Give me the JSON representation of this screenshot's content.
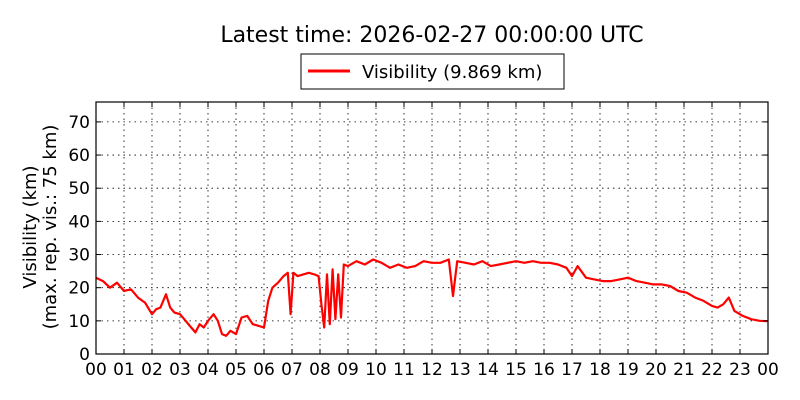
{
  "chart_data": {
    "type": "line",
    "title": "Latest time: 2026-02-27 00:00:00 UTC",
    "ylabel_line1": "Visibility (km)",
    "ylabel_line2": "(max. rep. vis.: 75 km)",
    "ylim": [
      0,
      76
    ],
    "xlim": [
      0,
      24
    ],
    "yticks": [
      0,
      10,
      20,
      30,
      40,
      50,
      60,
      70
    ],
    "ytick_labels": [
      "0",
      "10",
      "20",
      "30",
      "40",
      "50",
      "60",
      "70"
    ],
    "xtick_labels": [
      "00",
      "01",
      "02",
      "03",
      "04",
      "05",
      "06",
      "07",
      "08",
      "09",
      "10",
      "11",
      "12",
      "13",
      "14",
      "15",
      "16",
      "17",
      "18",
      "19",
      "20",
      "21",
      "22",
      "23",
      "00"
    ],
    "grid": true,
    "legend_position": "top-center",
    "series": [
      {
        "name": "Visibility (9.869 km)",
        "color": "#ff0000",
        "x": [
          0,
          0.25,
          0.5,
          0.75,
          1.0,
          1.25,
          1.5,
          1.75,
          2.0,
          2.15,
          2.3,
          2.5,
          2.65,
          2.8,
          3.0,
          3.2,
          3.4,
          3.55,
          3.7,
          3.85,
          4.0,
          4.2,
          4.35,
          4.5,
          4.65,
          4.8,
          5.0,
          5.2,
          5.4,
          5.6,
          5.8,
          6.0,
          6.15,
          6.3,
          6.5,
          6.7,
          6.85,
          6.95,
          7.05,
          7.2,
          7.4,
          7.6,
          7.8,
          7.95,
          8.05,
          8.15,
          8.25,
          8.35,
          8.45,
          8.55,
          8.65,
          8.75,
          8.85,
          9.0,
          9.3,
          9.6,
          9.9,
          10.2,
          10.5,
          10.8,
          11.1,
          11.4,
          11.7,
          12.0,
          12.3,
          12.6,
          12.75,
          12.9,
          13.2,
          13.5,
          13.8,
          14.1,
          14.4,
          14.7,
          15.0,
          15.3,
          15.6,
          15.9,
          16.2,
          16.5,
          16.8,
          17.0,
          17.2,
          17.5,
          17.8,
          18.1,
          18.4,
          18.7,
          19.0,
          19.3,
          19.6,
          19.9,
          20.2,
          20.5,
          20.8,
          21.1,
          21.4,
          21.7,
          22.0,
          22.2,
          22.4,
          22.6,
          22.8,
          23.1,
          23.4,
          23.7,
          24.0
        ],
        "values": [
          23,
          22,
          20,
          21.5,
          19,
          19.5,
          17,
          15.5,
          12,
          13.5,
          14,
          18,
          14,
          12.5,
          12,
          10,
          8,
          6.5,
          9,
          8,
          10,
          12,
          10,
          6,
          5.5,
          7,
          6,
          11,
          11.5,
          9,
          8.5,
          8,
          16,
          20,
          21.5,
          23.5,
          24.5,
          12,
          24.5,
          23.5,
          24,
          24.5,
          24,
          23.5,
          15,
          8,
          24,
          9,
          25.5,
          10.5,
          24,
          11,
          27,
          26.5,
          28,
          27,
          28.5,
          27.5,
          26,
          27,
          26,
          26.5,
          28,
          27.5,
          27.5,
          28.5,
          17.5,
          28,
          27.5,
          27,
          28,
          26.5,
          27,
          27.5,
          28,
          27.5,
          28,
          27.5,
          27.5,
          27,
          26,
          23.5,
          26.5,
          23,
          22.5,
          22,
          22,
          22.5,
          23,
          22,
          21.5,
          21,
          21,
          20.5,
          19,
          18.5,
          17,
          16,
          14.5,
          14,
          15,
          17,
          13,
          11.5,
          10.5,
          10,
          9.9
        ]
      }
    ]
  }
}
